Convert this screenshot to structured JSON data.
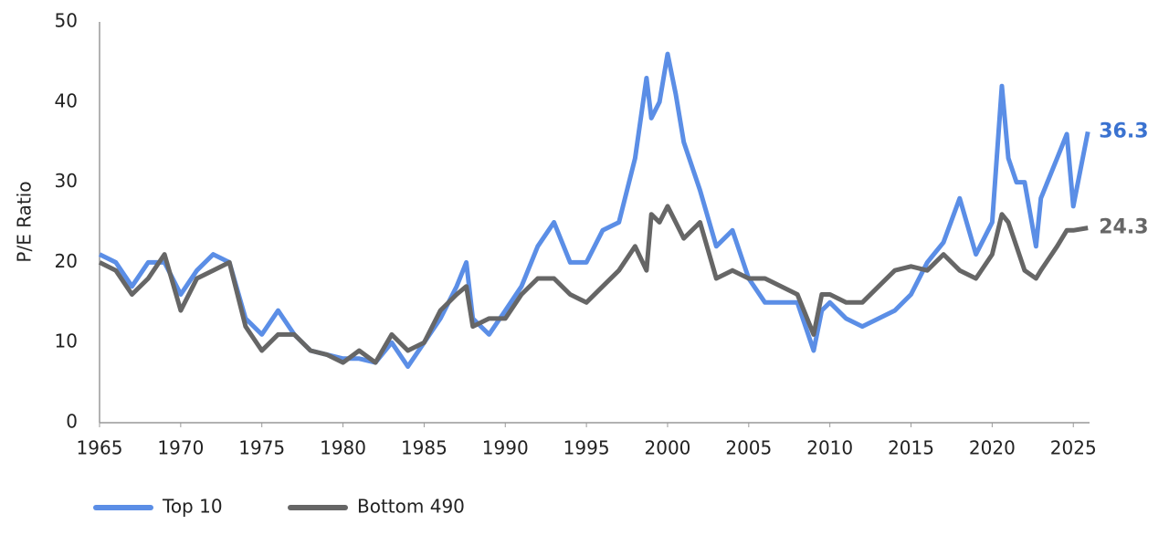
{
  "chart_data": {
    "type": "line",
    "y_label": "P/E Ratio",
    "x": [
      1965,
      1966,
      1967,
      1968,
      1969,
      1970,
      1971,
      1972,
      1973,
      1974,
      1975,
      1976,
      1977,
      1978,
      1979,
      1980,
      1981,
      1982,
      1983,
      1984,
      1985,
      1986,
      1987,
      1987.6,
      1988,
      1989,
      1990,
      1991,
      1992,
      1993,
      1994,
      1995,
      1996,
      1997,
      1998,
      1998.7,
      1999,
      1999.5,
      2000,
      2000.5,
      2001,
      2002,
      2003,
      2004,
      2005,
      2006,
      2007,
      2008,
      2009,
      2009.5,
      2010,
      2011,
      2012,
      2013,
      2014,
      2015,
      2016,
      2017,
      2018,
      2019,
      2020,
      2020.6,
      2021,
      2021.5,
      2022,
      2022.7,
      2023,
      2024,
      2024.6,
      2025,
      2025.9
    ],
    "series": [
      {
        "name": "Top 10",
        "color": "#5b8ee6",
        "label_color": "#3a72d0",
        "values": [
          21,
          20,
          17,
          20,
          20,
          16,
          19,
          21,
          20,
          13,
          11,
          14,
          11,
          9,
          8.5,
          8,
          8,
          7.5,
          10,
          7,
          10,
          13,
          17,
          20,
          13,
          11,
          14,
          17,
          22,
          25,
          20,
          20,
          24,
          25,
          33,
          43,
          38,
          40,
          46,
          41,
          35,
          29,
          22,
          24,
          18,
          15,
          15,
          15,
          9,
          14,
          15,
          13,
          12,
          13,
          14,
          16,
          20,
          22.5,
          28,
          21,
          25,
          42,
          33,
          30,
          30,
          22,
          28,
          33,
          36,
          27,
          36.3
        ]
      },
      {
        "name": "Bottom 490",
        "color": "#666666",
        "label_color": "#666666",
        "values": [
          20,
          19,
          16,
          18,
          21,
          14,
          18,
          19,
          20,
          12,
          9,
          11,
          11,
          9,
          8.5,
          7.5,
          9,
          7.5,
          11,
          9,
          10,
          14,
          16,
          17,
          12,
          13,
          13,
          16,
          18,
          18,
          16,
          15,
          17,
          19,
          22,
          19,
          26,
          25,
          27,
          25,
          23,
          25,
          18,
          19,
          18,
          18,
          17,
          16,
          11,
          16,
          16,
          15,
          15,
          17,
          19,
          19.5,
          19,
          21,
          19,
          18,
          21,
          26,
          25,
          22,
          19,
          18,
          19,
          22,
          24,
          24,
          24.3
        ]
      }
    ],
    "xlim": [
      1965,
      2026
    ],
    "xticks": [
      1965,
      1970,
      1975,
      1980,
      1985,
      1990,
      1995,
      2000,
      2005,
      2010,
      2015,
      2020,
      2025
    ],
    "ylim": [
      0,
      50
    ],
    "yticks": [
      0,
      10,
      20,
      30,
      40,
      50
    ],
    "grid": false,
    "legend": "bottom"
  }
}
